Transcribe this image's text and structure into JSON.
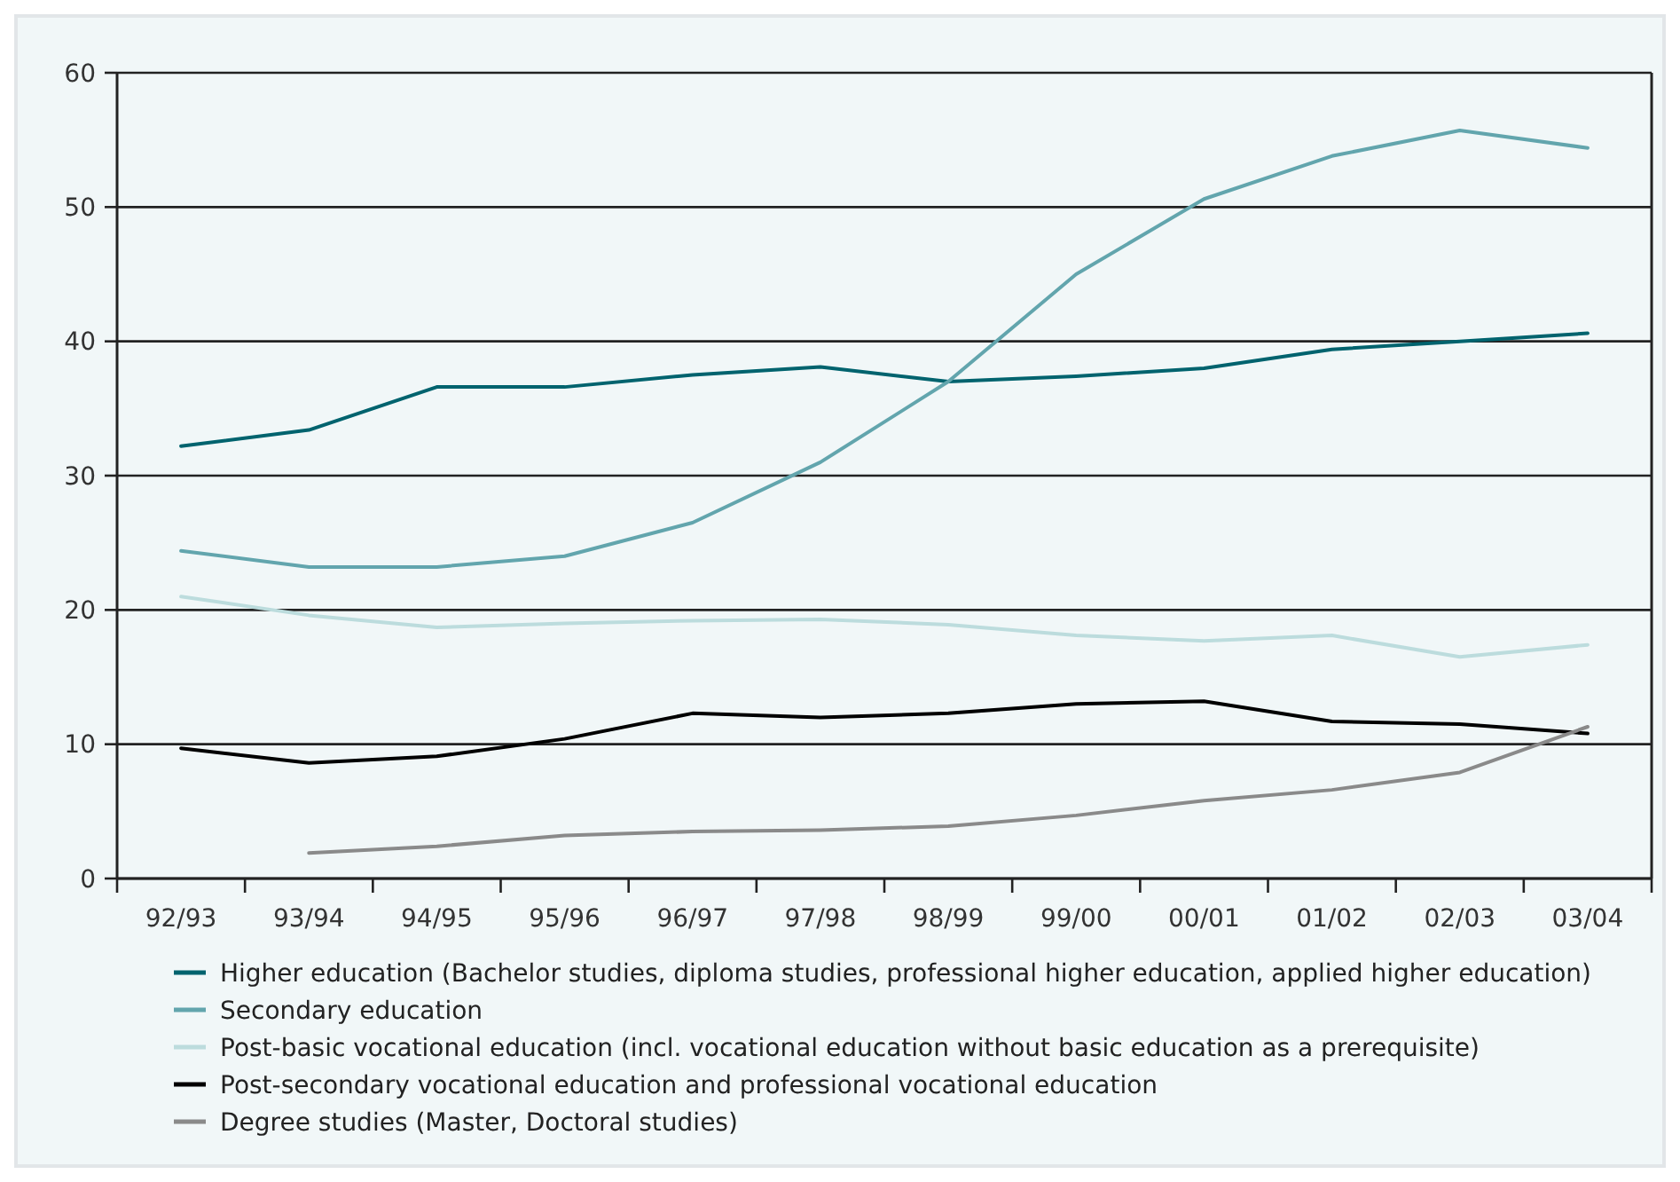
{
  "chart_data": {
    "type": "line",
    "categories": [
      "92/93",
      "93/94",
      "94/95",
      "95/96",
      "96/97",
      "97/98",
      "98/99",
      "99/00",
      "00/01",
      "01/02",
      "02/03",
      "03/04"
    ],
    "series": [
      {
        "name": "Higher education (Bachelor studies, diploma studies, professional higher education, applied higher education)",
        "color": "#00636e",
        "values": [
          32.2,
          33.4,
          36.6,
          36.6,
          37.5,
          38.1,
          37.0,
          37.4,
          38.0,
          39.4,
          40.0,
          40.6
        ]
      },
      {
        "name": "Secondary education",
        "color": "#62a5ad",
        "values": [
          24.4,
          23.2,
          23.2,
          24.0,
          26.5,
          31.0,
          37.0,
          45.0,
          50.6,
          53.8,
          55.7,
          54.4
        ]
      },
      {
        "name": "Post-basic vocational education (incl. vocational education without basic education as a prerequisite)",
        "color": "#bcdcdd",
        "values": [
          21.0,
          19.6,
          18.7,
          19.0,
          19.2,
          19.3,
          18.9,
          18.1,
          17.7,
          18.1,
          16.5,
          17.4
        ]
      },
      {
        "name": "Post-secondary vocational education and professional vocational education",
        "color": "#000000",
        "values": [
          9.7,
          8.6,
          9.1,
          10.4,
          12.3,
          12.0,
          12.3,
          13.0,
          13.2,
          11.7,
          11.5,
          10.8
        ]
      },
      {
        "name": "Degree studies (Master, Doctoral studies)",
        "color": "#8a8a8a",
        "values": [
          null,
          1.9,
          2.4,
          3.2,
          3.5,
          3.6,
          3.9,
          4.7,
          5.8,
          6.6,
          7.9,
          11.3
        ]
      }
    ],
    "ylim": [
      0,
      60
    ],
    "yticks": [
      0,
      10,
      20,
      30,
      40,
      50,
      60
    ],
    "grid": "y",
    "legend": "bottom",
    "marker": "none",
    "line_style": "solid"
  }
}
